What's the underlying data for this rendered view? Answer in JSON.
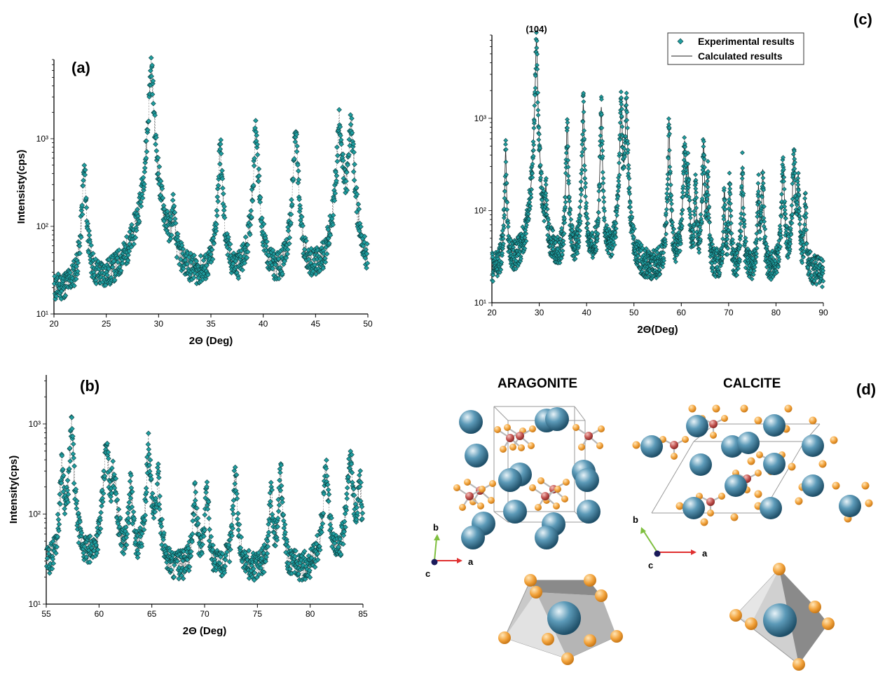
{
  "panels": {
    "a": "(a)",
    "b": "(b)",
    "c": "(c)",
    "d": "(d)"
  },
  "chart_data": [
    {
      "id": "a",
      "type": "scatter",
      "xlabel": "2Θ (Deg)",
      "ylabel": "Intensisty(cps)",
      "xlim": [
        20,
        50
      ],
      "ylim": [
        10,
        8000
      ],
      "yscale": "log",
      "xticks": [
        20,
        25,
        30,
        35,
        40,
        45,
        50
      ],
      "yticks": [
        {
          "value": 10,
          "label": "10¹"
        },
        {
          "value": 100,
          "label": "10²"
        },
        {
          "value": 1000,
          "label": "10³"
        }
      ],
      "baseline": 16,
      "peaks": [
        {
          "x": 22.9,
          "y": 420,
          "w": 0.15
        },
        {
          "x": 29.3,
          "y": 6200,
          "w": 0.18
        },
        {
          "x": 31.4,
          "y": 125,
          "w": 0.12
        },
        {
          "x": 35.9,
          "y": 760,
          "w": 0.15
        },
        {
          "x": 39.3,
          "y": 1350,
          "w": 0.15
        },
        {
          "x": 43.1,
          "y": 1150,
          "w": 0.15
        },
        {
          "x": 47.3,
          "y": 1600,
          "w": 0.18
        },
        {
          "x": 48.4,
          "y": 1450,
          "w": 0.18
        }
      ],
      "series": [
        {
          "marker": "diamond",
          "color": "#1f9ea0",
          "line": "dashed"
        }
      ]
    },
    {
      "id": "b",
      "type": "scatter",
      "xlabel": "2Θ (Deg)",
      "ylabel": "Intensity(cps)",
      "xlim": [
        55,
        85
      ],
      "ylim": [
        10,
        3500
      ],
      "yscale": "log",
      "xticks": [
        55,
        60,
        65,
        70,
        75,
        80,
        85
      ],
      "yticks": [
        {
          "value": 10,
          "label": "10¹"
        },
        {
          "value": 100,
          "label": "10²"
        },
        {
          "value": 1000,
          "label": "10³"
        }
      ],
      "baseline": 21,
      "peaks": [
        {
          "x": 56.5,
          "y": 330,
          "w": 0.15
        },
        {
          "x": 57.4,
          "y": 900,
          "w": 0.15
        },
        {
          "x": 60.7,
          "y": 520,
          "w": 0.2
        },
        {
          "x": 61.4,
          "y": 260,
          "w": 0.2
        },
        {
          "x": 63.0,
          "y": 200,
          "w": 0.15
        },
        {
          "x": 64.7,
          "y": 580,
          "w": 0.15
        },
        {
          "x": 65.6,
          "y": 230,
          "w": 0.15
        },
        {
          "x": 69.1,
          "y": 160,
          "w": 0.15
        },
        {
          "x": 70.2,
          "y": 190,
          "w": 0.15
        },
        {
          "x": 72.9,
          "y": 290,
          "w": 0.15
        },
        {
          "x": 76.3,
          "y": 170,
          "w": 0.15
        },
        {
          "x": 77.2,
          "y": 260,
          "w": 0.15
        },
        {
          "x": 81.5,
          "y": 310,
          "w": 0.2
        },
        {
          "x": 83.8,
          "y": 450,
          "w": 0.2
        },
        {
          "x": 84.7,
          "y": 220,
          "w": 0.15
        }
      ],
      "series": [
        {
          "marker": "diamond",
          "color": "#1f9ea0",
          "line": "dashed"
        }
      ]
    },
    {
      "id": "c",
      "type": "line",
      "xlabel": "2Θ(Deg)",
      "ylabel": "",
      "xlim": [
        20,
        90
      ],
      "ylim": [
        10,
        8000
      ],
      "yscale": "log",
      "xticks": [
        20,
        30,
        40,
        50,
        60,
        70,
        80,
        90
      ],
      "yticks": [
        {
          "value": 10,
          "label": "10¹"
        },
        {
          "value": 100,
          "label": "10²"
        },
        {
          "value": 1000,
          "label": "10³"
        }
      ],
      "annotation": {
        "text": "(104)",
        "x": 29.4
      },
      "legend": {
        "placement": "top-right",
        "entries": [
          "Experimental results",
          "Calculated results"
        ]
      },
      "baseline": 20,
      "peaks": [
        {
          "x": 22.9,
          "y": 420,
          "w": 0.15
        },
        {
          "x": 29.4,
          "y": 6500,
          "w": 0.18
        },
        {
          "x": 31.4,
          "y": 130,
          "w": 0.12
        },
        {
          "x": 35.9,
          "y": 900,
          "w": 0.15
        },
        {
          "x": 39.3,
          "y": 1350,
          "w": 0.15
        },
        {
          "x": 43.1,
          "y": 1250,
          "w": 0.15
        },
        {
          "x": 47.3,
          "y": 1600,
          "w": 0.18
        },
        {
          "x": 48.4,
          "y": 1450,
          "w": 0.18
        },
        {
          "x": 57.4,
          "y": 900,
          "w": 0.15
        },
        {
          "x": 60.7,
          "y": 520,
          "w": 0.2
        },
        {
          "x": 61.4,
          "y": 260,
          "w": 0.2
        },
        {
          "x": 63.0,
          "y": 200,
          "w": 0.15
        },
        {
          "x": 64.7,
          "y": 580,
          "w": 0.15
        },
        {
          "x": 65.6,
          "y": 230,
          "w": 0.15
        },
        {
          "x": 69.1,
          "y": 160,
          "w": 0.15
        },
        {
          "x": 70.2,
          "y": 190,
          "w": 0.15
        },
        {
          "x": 72.9,
          "y": 290,
          "w": 0.15
        },
        {
          "x": 76.3,
          "y": 170,
          "w": 0.15
        },
        {
          "x": 77.2,
          "y": 260,
          "w": 0.15
        },
        {
          "x": 81.5,
          "y": 310,
          "w": 0.2
        },
        {
          "x": 83.8,
          "y": 450,
          "w": 0.2
        },
        {
          "x": 84.7,
          "y": 220,
          "w": 0.15
        },
        {
          "x": 86.2,
          "y": 120,
          "w": 0.15
        }
      ],
      "series": [
        {
          "name": "Experimental results",
          "marker": "diamond",
          "color": "#1f9ea0"
        },
        {
          "name": "Calculated results",
          "marker": "line",
          "color": "#222222"
        }
      ]
    }
  ],
  "structures": {
    "aragonite": {
      "title": "ARAGONITE",
      "axes": {
        "a": "a",
        "b": "b",
        "c": "c"
      }
    },
    "calcite": {
      "title": "CALCITE",
      "axes": {
        "a": "a",
        "b": "b",
        "c": "c"
      }
    },
    "colors": {
      "calcium": "#2f6f8f",
      "oxygen": "#f2a23a",
      "carbon": "#c0504d",
      "frame": "#9a9a9a",
      "axis_a": "#e03030",
      "axis_b": "#7fbf3f",
      "axis_c": "#1a1a5a"
    }
  }
}
